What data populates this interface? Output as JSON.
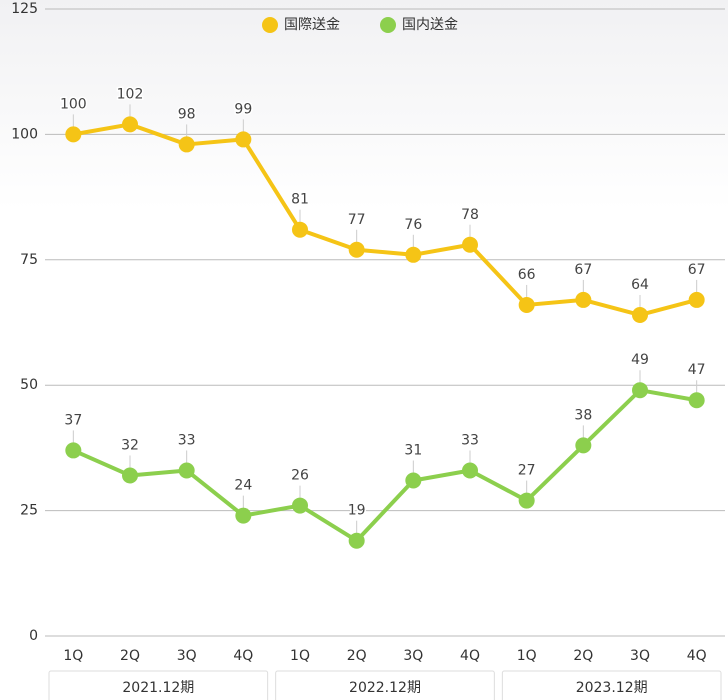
{
  "chart_data": {
    "type": "line",
    "categories": [
      "1Q",
      "2Q",
      "3Q",
      "4Q",
      "1Q",
      "2Q",
      "3Q",
      "4Q",
      "1Q",
      "2Q",
      "3Q",
      "4Q"
    ],
    "x_groups": [
      "2021.12期",
      "2022.12期",
      "2023.12期"
    ],
    "series": [
      {
        "name": "国際送金",
        "color": "#f5c416",
        "values": [
          100,
          102,
          98,
          99,
          81,
          77,
          76,
          78,
          66,
          67,
          64,
          67
        ]
      },
      {
        "name": "国内送金",
        "color": "#8ccf4d",
        "values": [
          37,
          32,
          33,
          24,
          26,
          19,
          31,
          33,
          27,
          38,
          49,
          47
        ]
      }
    ],
    "ylim": [
      0,
      125
    ],
    "yticks": [
      0,
      25,
      50,
      75,
      100,
      125
    ],
    "grid": true,
    "legend": "top"
  }
}
